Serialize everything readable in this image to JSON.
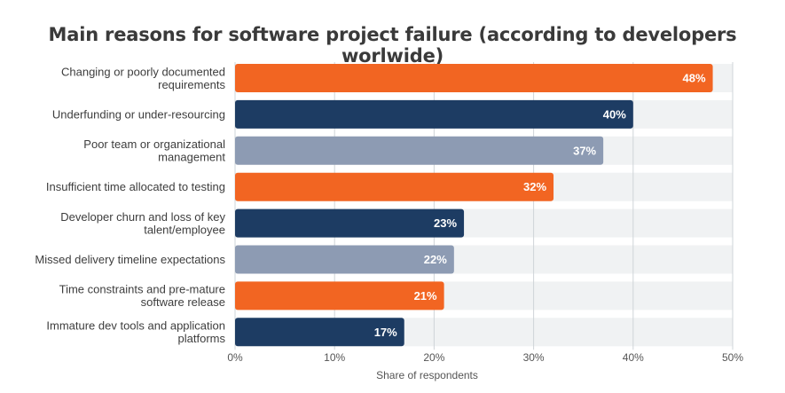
{
  "chart_data": {
    "type": "bar",
    "orientation": "horizontal",
    "title": "Main reasons for software project failure (according to developers worlwide)",
    "xlabel": "Share of respondents",
    "ylabel": "",
    "xlim": [
      0,
      50
    ],
    "x_ticks": [
      "0%",
      "10%",
      "20%",
      "30%",
      "40%",
      "50%"
    ],
    "grid": true,
    "legend": "none",
    "categories": [
      [
        "Changing or poorly documented",
        "requirements"
      ],
      [
        "Underfunding or under-resourcing"
      ],
      [
        "Poor team or organizational",
        "management"
      ],
      [
        "Insufficient time allocated to testing"
      ],
      [
        "Developer churn and loss of key",
        "talent/employee"
      ],
      [
        "Missed delivery timeline expectations"
      ],
      [
        "Time constraints and pre-mature",
        "software release"
      ],
      [
        "Immature dev tools and application",
        "platforms"
      ]
    ],
    "values": [
      48,
      40,
      37,
      32,
      23,
      22,
      21,
      17
    ],
    "data_labels": [
      "48%",
      "40%",
      "37%",
      "32%",
      "23%",
      "22%",
      "21%",
      "17%"
    ],
    "colors": [
      "#f26522",
      "#1d3c63",
      "#8d9bb3",
      "#f26522",
      "#1d3c63",
      "#8d9bb3",
      "#f26522",
      "#1d3c63"
    ],
    "band_color": "#f0f2f3",
    "grid_color": "#cfd4d8"
  }
}
